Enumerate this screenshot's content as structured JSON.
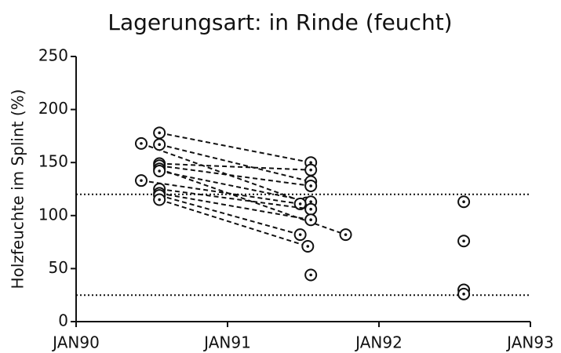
{
  "chart_data": {
    "type": "scatter",
    "title": "Lagerungsart: in Rinde (feucht)",
    "y_label": "Holzfeuchte im Splint (%)",
    "xlim": [
      1990,
      1993
    ],
    "xticks": [
      {
        "value": 1990,
        "label": "JAN90"
      },
      {
        "value": 1991,
        "label": "JAN91"
      },
      {
        "value": 1992,
        "label": "JAN92"
      },
      {
        "value": 1993,
        "label": "JAN93"
      }
    ],
    "ylim": [
      0,
      250
    ],
    "yticks": [
      0,
      50,
      100,
      150,
      200,
      250
    ],
    "color": "#111111",
    "line_style": "dashed",
    "hlines": [
      120,
      25
    ],
    "series": [
      {
        "x": [
          1990.43,
          1991.52
        ],
        "values": [
          168,
          112
        ]
      },
      {
        "x": [
          1990.55,
          1991.55
        ],
        "values": [
          178,
          150
        ]
      },
      {
        "x": [
          1990.55,
          1991.55
        ],
        "values": [
          167,
          132
        ]
      },
      {
        "x": [
          1990.55,
          1991.55
        ],
        "values": [
          149,
          143
        ]
      },
      {
        "x": [
          1990.55,
          1991.55
        ],
        "values": [
          147,
          128
        ]
      },
      {
        "x": [
          1990.55,
          1991.78
        ],
        "values": [
          144,
          82
        ]
      },
      {
        "x": [
          1990.55,
          1991.55
        ],
        "values": [
          142,
          113
        ]
      },
      {
        "x": [
          1990.43,
          1991.48
        ],
        "values": [
          133,
          111
        ]
      },
      {
        "x": [
          1990.55,
          1991.55
        ],
        "values": [
          125,
          106
        ]
      },
      {
        "x": [
          1990.55,
          1991.55
        ],
        "values": [
          121,
          96
        ]
      },
      {
        "x": [
          1990.55,
          1991.48
        ],
        "values": [
          119,
          82
        ]
      },
      {
        "x": [
          1990.55,
          1991.53
        ],
        "values": [
          115,
          71
        ]
      },
      {
        "x": [
          1991.55
        ],
        "values": [
          44
        ]
      },
      {
        "x": [
          1992.56
        ],
        "values": [
          113
        ]
      },
      {
        "x": [
          1992.56
        ],
        "values": [
          76
        ]
      },
      {
        "x": [
          1992.56
        ],
        "values": [
          30
        ]
      },
      {
        "x": [
          1992.56
        ],
        "values": [
          26
        ]
      }
    ]
  }
}
